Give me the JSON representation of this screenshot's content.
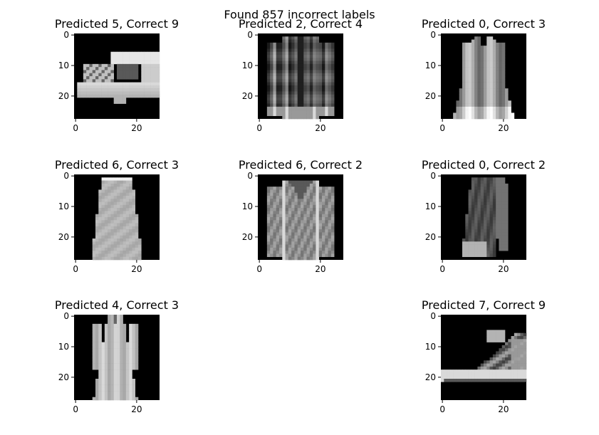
{
  "chart_data": {
    "type": "image-grid",
    "suptitle": "Found 857 incorrect labels",
    "image_size": 28,
    "x_ticks": [
      "0",
      "20"
    ],
    "y_ticks": [
      "0",
      "10",
      "20"
    ],
    "colormap": "gray",
    "panels": [
      {
        "title": "Predicted 5, Correct 9",
        "item": "sandal"
      },
      {
        "title": "Predicted 2, Correct 4",
        "item": "dark-cardigan"
      },
      {
        "title": "Predicted 0, Correct 3",
        "item": "dress"
      },
      {
        "title": "Predicted 6, Correct 3",
        "item": "skirt-dress"
      },
      {
        "title": "Predicted 6, Correct 2",
        "item": "sweater"
      },
      {
        "title": "Predicted 0, Correct 2",
        "item": "dark-coat"
      },
      {
        "title": "Predicted 4, Correct 3",
        "item": "long-dress"
      },
      {
        "title": "Predicted 7, Correct 9",
        "item": "ankle-boot"
      }
    ]
  }
}
